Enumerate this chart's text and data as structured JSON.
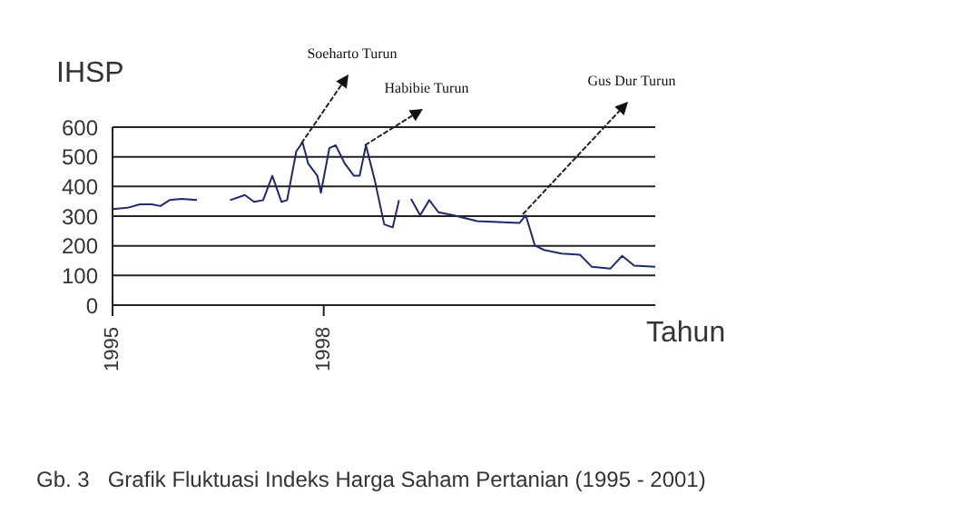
{
  "chart_data": {
    "type": "line",
    "ylabel": "IHSP",
    "xlabel": "Tahun",
    "annotations": [
      "Soeharto Turun",
      "Habibie Turun",
      "Gus Dur Turun",
      "Gb. 3   Grafik Fluktuasi Indeks Harga Saham Pertanian (1995 - 2001)"
    ],
    "x": [
      1995.0,
      1995.21,
      1995.39,
      1995.56,
      1995.68,
      1995.81,
      1995.98,
      1996.2,
      1996.4,
      1996.67,
      1996.88,
      1997.01,
      1997.14,
      1997.27,
      1997.4,
      1997.48,
      1997.61,
      1997.7,
      1997.78,
      1997.91,
      1997.96,
      1998.08,
      1998.17,
      1998.3,
      1998.43,
      1998.51,
      1998.6,
      1998.73,
      1998.86,
      1998.98,
      1999.07,
      1999.15,
      1999.24,
      1999.37,
      1999.5,
      1999.63,
      1999.84,
      2000.18,
      2000.78,
      2000.87,
      2001.0,
      2001.13,
      2001.38,
      2001.64,
      2001.81,
      2002.07,
      2002.24,
      2002.41,
      2002.71
    ],
    "series": [
      {
        "color": "#1f2a6e",
        "values": [
          324,
          328,
          340,
          340,
          334,
          354,
          358,
          354,
          null,
          354,
          371,
          348,
          354,
          436,
          348,
          354,
          518,
          549,
          477,
          436,
          379,
          529,
          539,
          477,
          436,
          436,
          539,
          416,
          272,
          262,
          354,
          null,
          358,
          303,
          354,
          313,
          303,
          283,
          277,
          303,
          201,
          186,
          174,
          170,
          129,
          123,
          166,
          133,
          129
        ]
      }
    ],
    "xlim": [
      1995,
      2002.71
    ],
    "xticks": [
      1995,
      1998
    ],
    "ylim": [
      0,
      600
    ],
    "yticks": [
      0,
      100,
      200,
      300,
      400,
      500,
      600
    ],
    "grid": "y"
  }
}
